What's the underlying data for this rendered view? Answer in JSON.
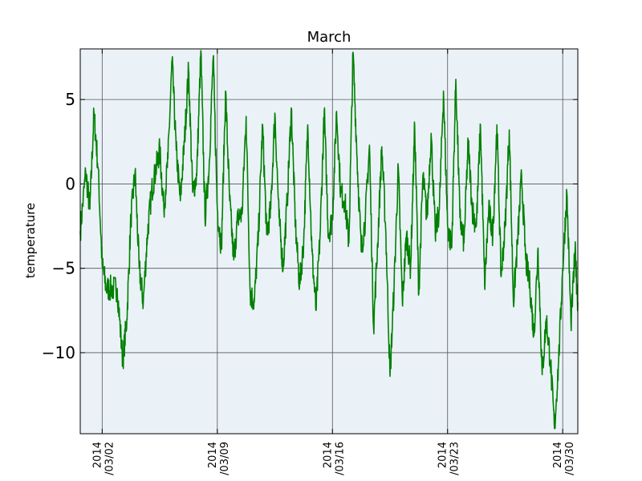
{
  "chart_data": {
    "type": "line",
    "title": "March",
    "xlabel": "",
    "ylabel": "temperature",
    "x_range": [
      "2014-02-28T16:00",
      "2014-03-30T22:00"
    ],
    "ylim": [
      -14.8,
      8.0
    ],
    "grid": true,
    "plot_background": "#eaf2f8",
    "line_color": "#008000",
    "y_ticks": [
      {
        "value": 5,
        "label": "5"
      },
      {
        "value": 0,
        "label": "0"
      },
      {
        "value": -5,
        "label": "−5"
      },
      {
        "value": -10,
        "label": "−10"
      }
    ],
    "x_ticks": [
      {
        "value": "2014-03-02",
        "line1": "2014",
        "line2": "/03/02"
      },
      {
        "value": "2014-03-09",
        "line1": "2014",
        "line2": "/03/09"
      },
      {
        "value": "2014-03-16",
        "line1": "2014",
        "line2": "/03/16"
      },
      {
        "value": "2014-03-23",
        "line1": "2014",
        "line2": "/03/23"
      },
      {
        "value": "2014-03-30",
        "line1": "2014",
        "line2": "/03/30"
      }
    ],
    "series": [
      {
        "x": [
          "2014-02-28T16:00",
          "2014-03-01T00:00",
          "2014-03-01T06:00",
          "2014-03-01T12:00",
          "2014-03-01T18:00",
          "2014-03-02T00:00",
          "2014-03-02T06:00",
          "2014-03-02T14:00",
          "2014-03-02T22:00",
          "2014-03-03T06:00",
          "2014-03-03T12:00",
          "2014-03-03T18:00",
          "2014-03-04T00:00",
          "2014-03-04T06:00",
          "2014-03-04T12:00",
          "2014-03-04T18:00",
          "2014-03-05T00:00",
          "2014-03-05T06:00",
          "2014-03-05T12:00",
          "2014-03-05T18:00",
          "2014-03-06T00:00",
          "2014-03-06T06:00",
          "2014-03-06T12:00",
          "2014-03-06T18:00",
          "2014-03-07T00:00",
          "2014-03-07T06:00",
          "2014-03-07T12:00",
          "2014-03-07T18:00",
          "2014-03-08T00:00",
          "2014-03-08T06:00",
          "2014-03-08T12:00",
          "2014-03-08T18:00",
          "2014-03-09T00:00",
          "2014-03-09T06:00",
          "2014-03-09T12:00",
          "2014-03-09T18:00",
          "2014-03-10T00:00",
          "2014-03-10T06:00",
          "2014-03-10T12:00",
          "2014-03-10T18:00",
          "2014-03-11T00:00",
          "2014-03-11T06:00",
          "2014-03-11T12:00",
          "2014-03-11T18:00",
          "2014-03-12T00:00",
          "2014-03-12T06:00",
          "2014-03-12T12:00",
          "2014-03-12T18:00",
          "2014-03-13T00:00",
          "2014-03-13T06:00",
          "2014-03-13T12:00",
          "2014-03-13T18:00",
          "2014-03-14T00:00",
          "2014-03-14T06:00",
          "2014-03-14T12:00",
          "2014-03-14T18:00",
          "2014-03-15T00:00",
          "2014-03-15T06:00",
          "2014-03-15T12:00",
          "2014-03-15T18:00",
          "2014-03-16T00:00",
          "2014-03-16T06:00",
          "2014-03-16T12:00",
          "2014-03-16T18:00",
          "2014-03-17T00:00",
          "2014-03-17T06:00",
          "2014-03-17T12:00",
          "2014-03-17T18:00",
          "2014-03-18T00:00",
          "2014-03-18T06:00",
          "2014-03-18T12:00",
          "2014-03-18T18:00",
          "2014-03-19T00:00",
          "2014-03-19T06:00",
          "2014-03-19T12:00",
          "2014-03-19T18:00",
          "2014-03-20T00:00",
          "2014-03-20T06:00",
          "2014-03-20T12:00",
          "2014-03-20T18:00",
          "2014-03-21T00:00",
          "2014-03-21T06:00",
          "2014-03-21T12:00",
          "2014-03-21T18:00",
          "2014-03-22T00:00",
          "2014-03-22T06:00",
          "2014-03-22T12:00",
          "2014-03-22T18:00",
          "2014-03-23T00:00",
          "2014-03-23T06:00",
          "2014-03-23T12:00",
          "2014-03-23T18:00",
          "2014-03-24T00:00",
          "2014-03-24T06:00",
          "2014-03-24T12:00",
          "2014-03-24T18:00",
          "2014-03-25T00:00",
          "2014-03-25T06:00",
          "2014-03-25T12:00",
          "2014-03-25T18:00",
          "2014-03-26T00:00",
          "2014-03-26T06:00",
          "2014-03-26T12:00",
          "2014-03-26T18:00",
          "2014-03-27T00:00",
          "2014-03-27T06:00",
          "2014-03-27T12:00",
          "2014-03-27T18:00",
          "2014-03-28T00:00",
          "2014-03-28T06:00",
          "2014-03-28T12:00",
          "2014-03-28T18:00",
          "2014-03-29T00:00",
          "2014-03-29T06:00",
          "2014-03-29T12:00",
          "2014-03-29T18:00",
          "2014-03-30T00:00",
          "2014-03-30T06:00",
          "2014-03-30T12:00",
          "2014-03-30T18:00",
          "2014-03-30T22:00"
        ],
        "y": [
          -2.8,
          0.7,
          -1.5,
          4.2,
          1.0,
          -4.8,
          -6.2,
          -6.2,
          -6.2,
          -10.5,
          -8.0,
          -2.0,
          0.7,
          -5.0,
          -7.0,
          -3.0,
          -0.5,
          0.8,
          2.0,
          -1.5,
          1.5,
          7.3,
          2.0,
          -1.0,
          2.5,
          6.8,
          -0.5,
          0.5,
          7.9,
          -2.0,
          1.0,
          7.5,
          -1.5,
          -3.8,
          5.5,
          -1.0,
          -4.5,
          -2.0,
          -1.8,
          4.0,
          -6.5,
          -7.0,
          -3.0,
          3.5,
          -3.0,
          -1.5,
          4.2,
          -2.0,
          -5.0,
          -1.0,
          4.5,
          -2.5,
          -6.0,
          -3.5,
          3.5,
          -4.0,
          -7.5,
          -3.0,
          4.3,
          -3.0,
          -2.0,
          4.3,
          -0.5,
          -1.0,
          -3.5,
          7.8,
          1.5,
          -4.0,
          -2.0,
          2.3,
          -8.5,
          -3.5,
          2.2,
          -3.0,
          -11.4,
          -6.0,
          1.0,
          -7.0,
          -3.0,
          -5.0,
          3.5,
          -6.5,
          0.5,
          -2.0,
          3.0,
          -3.0,
          -1.5,
          5.5,
          -2.5,
          -3.8,
          6.2,
          -2.0,
          -3.5,
          2.5,
          -1.5,
          -2.5,
          3.5,
          -6.0,
          -1.5,
          -3.0,
          3.5,
          -5.5,
          -2.5,
          3.2,
          -7.0,
          -3.5,
          0.5,
          -4.5,
          -6.0,
          -9.0,
          -3.8,
          -11.3,
          -8.0,
          -10.5,
          -14.5,
          -10.5,
          -5.0,
          -0.5,
          -8.3,
          -4.0,
          -7.0
        ]
      }
    ]
  }
}
